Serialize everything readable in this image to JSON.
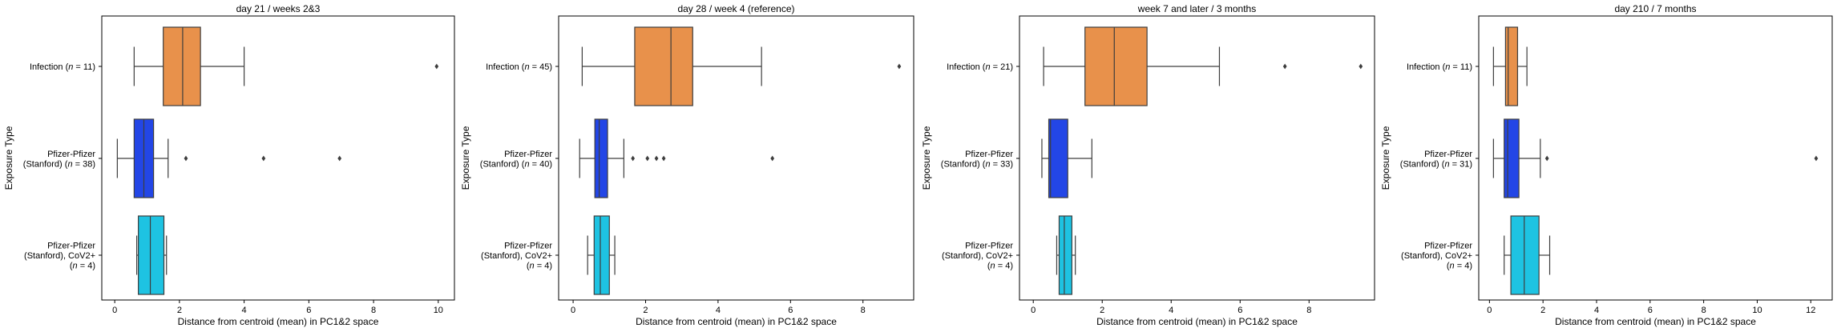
{
  "chart_data": [
    {
      "type": "boxplot",
      "orientation": "horizontal",
      "title": "day 21 / weeks 2&3",
      "xlabel": "Distance from centroid (mean) in PC1&2 space",
      "ylabel": "Exposure Type",
      "xlim": [
        -0.4,
        10.5
      ],
      "xticks": [
        0,
        2,
        4,
        6,
        8,
        10
      ],
      "categories": [
        [
          "Infection (",
          "n",
          " = 11)"
        ],
        [
          "Pfizer-Pfizer",
          "(Stanford) (",
          "n",
          " = 38)"
        ],
        [
          "Pfizer-Pfizer",
          "(Stanford), CoV2+",
          "(",
          "n",
          " = 4)"
        ]
      ],
      "boxes": [
        {
          "color": "#E8914B",
          "whislo": 0.6,
          "q1": 1.5,
          "med": 2.1,
          "q3": 2.65,
          "whishi": 4.0,
          "fliers": [
            9.95
          ]
        },
        {
          "color": "#2346E6",
          "whislo": 0.08,
          "q1": 0.6,
          "med": 0.9,
          "q3": 1.2,
          "whishi": 1.65,
          "fliers": [
            2.2,
            4.6,
            6.95
          ]
        },
        {
          "color": "#1EC3E2",
          "whislo": 0.68,
          "q1": 0.73,
          "med": 1.1,
          "q3": 1.52,
          "whishi": 1.6,
          "fliers": []
        }
      ]
    },
    {
      "type": "boxplot",
      "orientation": "horizontal",
      "title": "day 28 / week 4 (reference)",
      "xlabel": "Distance from centroid (mean) in PC1&2 space",
      "ylabel": "Exposure Type",
      "xlim": [
        -0.4,
        9.4
      ],
      "xticks": [
        0,
        2,
        4,
        6,
        8
      ],
      "categories": [
        [
          "Infection (",
          "n",
          " = 45)"
        ],
        [
          "Pfizer-Pfizer",
          "(Stanford) (",
          "n",
          " = 40)"
        ],
        [
          "Pfizer-Pfizer",
          "(Stanford), CoV2+",
          "(",
          "n",
          " = 4)"
        ]
      ],
      "boxes": [
        {
          "color": "#E8914B",
          "whislo": 0.25,
          "q1": 1.7,
          "med": 2.7,
          "q3": 3.3,
          "whishi": 5.2,
          "fliers": [
            9.0
          ]
        },
        {
          "color": "#2346E6",
          "whislo": 0.18,
          "q1": 0.6,
          "med": 0.72,
          "q3": 0.95,
          "whishi": 1.4,
          "fliers": [
            1.65,
            2.05,
            2.3,
            2.5,
            5.5
          ]
        },
        {
          "color": "#1EC3E2",
          "whislo": 0.4,
          "q1": 0.58,
          "med": 0.75,
          "q3": 1.0,
          "whishi": 1.15,
          "fliers": []
        }
      ]
    },
    {
      "type": "boxplot",
      "orientation": "horizontal",
      "title": "week 7 and later / 3 months",
      "xlabel": "Distance from centroid (mean) in PC1&2 space",
      "ylabel": "Exposure Type",
      "xlim": [
        -0.4,
        9.9
      ],
      "xticks": [
        0,
        2,
        4,
        6,
        8
      ],
      "categories": [
        [
          "Infection (",
          "n",
          " = 21)"
        ],
        [
          "Pfizer-Pfizer",
          "(Stanford) (",
          "n",
          " = 33)"
        ],
        [
          "Pfizer-Pfizer",
          "(Stanford), CoV2+",
          "(",
          "n",
          " = 4)"
        ]
      ],
      "boxes": [
        {
          "color": "#E8914B",
          "whislo": 0.3,
          "q1": 1.5,
          "med": 2.35,
          "q3": 3.3,
          "whishi": 5.4,
          "fliers": [
            7.3,
            9.5
          ]
        },
        {
          "color": "#2346E6",
          "whislo": 0.25,
          "q1": 0.45,
          "med": 0.5,
          "q3": 1.0,
          "whishi": 1.7,
          "fliers": []
        },
        {
          "color": "#1EC3E2",
          "whislo": 0.68,
          "q1": 0.75,
          "med": 0.9,
          "q3": 1.12,
          "whishi": 1.22,
          "fliers": []
        }
      ]
    },
    {
      "type": "boxplot",
      "orientation": "horizontal",
      "title": "day 210 / 7 months",
      "xlabel": "Distance from centroid (mean) in PC1&2 space",
      "ylabel": "Exposure Type",
      "xlim": [
        -0.4,
        12.8
      ],
      "xticks": [
        0,
        2,
        4,
        6,
        8,
        10,
        12
      ],
      "categories": [
        [
          "Infection (",
          "n",
          " = 11)"
        ],
        [
          "Pfizer-Pfizer",
          "(Stanford) (",
          "n",
          " = 31)"
        ],
        [
          "Pfizer-Pfizer",
          "(Stanford), CoV2+",
          "(",
          "n",
          " = 4)"
        ]
      ],
      "boxes": [
        {
          "color": "#E8914B",
          "whislo": 0.15,
          "q1": 0.6,
          "med": 0.7,
          "q3": 1.05,
          "whishi": 1.4,
          "fliers": []
        },
        {
          "color": "#2346E6",
          "whislo": 0.15,
          "q1": 0.55,
          "med": 0.68,
          "q3": 1.1,
          "whishi": 1.9,
          "fliers": [
            2.15,
            12.2
          ]
        },
        {
          "color": "#1EC3E2",
          "whislo": 0.55,
          "q1": 0.8,
          "med": 1.3,
          "q3": 1.85,
          "whishi": 2.25,
          "fliers": []
        }
      ]
    }
  ]
}
